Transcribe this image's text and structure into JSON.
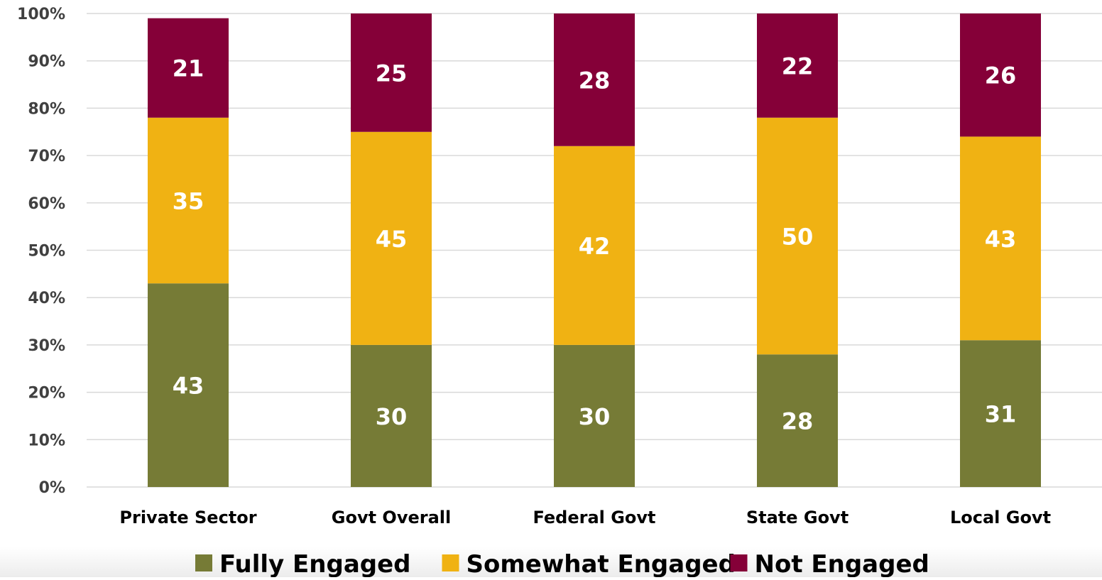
{
  "chart_data": {
    "type": "bar",
    "stacked": true,
    "categories": [
      "Private Sector",
      "Govt Overall",
      "Federal Govt",
      "State Govt",
      "Local Govt"
    ],
    "series": [
      {
        "name": "Fully Engaged",
        "color": "#767b36",
        "values": [
          43,
          30,
          30,
          28,
          31
        ]
      },
      {
        "name": "Somewhat Engaged",
        "color": "#f0b213",
        "values": [
          35,
          45,
          42,
          50,
          43
        ]
      },
      {
        "name": "Not Engaged",
        "color": "#850038",
        "values": [
          21,
          25,
          28,
          22,
          26
        ]
      }
    ],
    "ylim": [
      0,
      100
    ],
    "ytick_labels": [
      "0%",
      "10%",
      "20%",
      "30%",
      "40%",
      "50%",
      "60%",
      "70%",
      "80%",
      "90%",
      "100%"
    ],
    "grid": true,
    "legend_position": "bottom",
    "title": "",
    "xlabel": "",
    "ylabel": ""
  }
}
